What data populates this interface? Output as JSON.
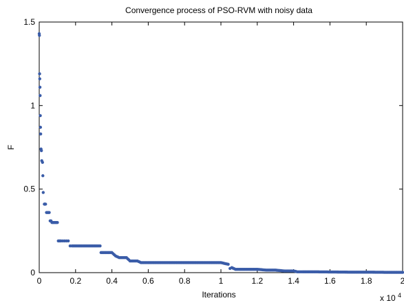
{
  "chart_data": {
    "type": "scatter",
    "title": "Convergence process of PSO-RVM with noisy data",
    "xlabel": "Iterations",
    "ylabel": "F",
    "x_multiplier_label": "x 10",
    "x_multiplier_exponent": "4",
    "xlim": [
      0,
      2
    ],
    "ylim": [
      0,
      1.5
    ],
    "x_ticks": [
      0,
      0.2,
      0.4,
      0.6,
      0.8,
      1,
      1.2,
      1.4,
      1.6,
      1.8,
      2
    ],
    "x_tick_labels": [
      "0",
      "0.2",
      "0.4",
      "0.6",
      "0.8",
      "1",
      "1.2",
      "1.4",
      "1.6",
      "1.8",
      "2"
    ],
    "y_ticks": [
      0,
      0.5,
      1,
      1.5
    ],
    "y_tick_labels": [
      "0",
      "0.5",
      "1",
      "1.5"
    ],
    "grid": false,
    "marker_color": "#3a5ca8",
    "series": [
      {
        "x": [
          0.0,
          0.001,
          0.002,
          0.003,
          0.004,
          0.005,
          0.006,
          0.007,
          0.008,
          0.01,
          0.012,
          0.014,
          0.018,
          0.02,
          0.022,
          0.028,
          0.03,
          0.035,
          0.04,
          0.045,
          0.05,
          0.055,
          0.06,
          0.065,
          0.07,
          0.075,
          0.08,
          0.085,
          0.09,
          0.095,
          0.1,
          0.105,
          0.11,
          0.115,
          0.12,
          0.13,
          0.14,
          0.15,
          0.16,
          0.17,
          0.18,
          0.2,
          0.22,
          0.24,
          0.26,
          0.28,
          0.3,
          0.32,
          0.335,
          0.34,
          0.36,
          0.38,
          0.4,
          0.42,
          0.44,
          0.46,
          0.48,
          0.5,
          0.52,
          0.54,
          0.56,
          0.6,
          0.65,
          0.7,
          0.75,
          0.8,
          0.85,
          0.9,
          0.95,
          1.0,
          1.02,
          1.04,
          1.05,
          1.06,
          1.08,
          1.1,
          1.15,
          1.2,
          1.25,
          1.3,
          1.35,
          1.38,
          1.4,
          1.42,
          1.45,
          1.5,
          1.6,
          1.7,
          1.8,
          1.9,
          2.0
        ],
        "y": [
          1.43,
          1.42,
          1.19,
          1.16,
          1.11,
          1.06,
          0.94,
          0.87,
          0.83,
          0.74,
          0.73,
          0.67,
          0.66,
          0.58,
          0.48,
          0.41,
          0.41,
          0.41,
          0.36,
          0.36,
          0.36,
          0.36,
          0.31,
          0.31,
          0.3,
          0.3,
          0.3,
          0.3,
          0.3,
          0.3,
          0.3,
          0.19,
          0.19,
          0.19,
          0.19,
          0.19,
          0.19,
          0.19,
          0.19,
          0.16,
          0.16,
          0.16,
          0.16,
          0.16,
          0.16,
          0.16,
          0.16,
          0.16,
          0.16,
          0.12,
          0.12,
          0.12,
          0.12,
          0.1,
          0.09,
          0.09,
          0.09,
          0.07,
          0.07,
          0.07,
          0.06,
          0.06,
          0.06,
          0.06,
          0.06,
          0.06,
          0.06,
          0.06,
          0.06,
          0.06,
          0.055,
          0.05,
          0.025,
          0.03,
          0.02,
          0.02,
          0.02,
          0.02,
          0.015,
          0.015,
          0.01,
          0.01,
          0.01,
          0.005,
          0.005,
          0.005,
          0.004,
          0.003,
          0.003,
          0.002,
          0.002
        ]
      }
    ]
  }
}
